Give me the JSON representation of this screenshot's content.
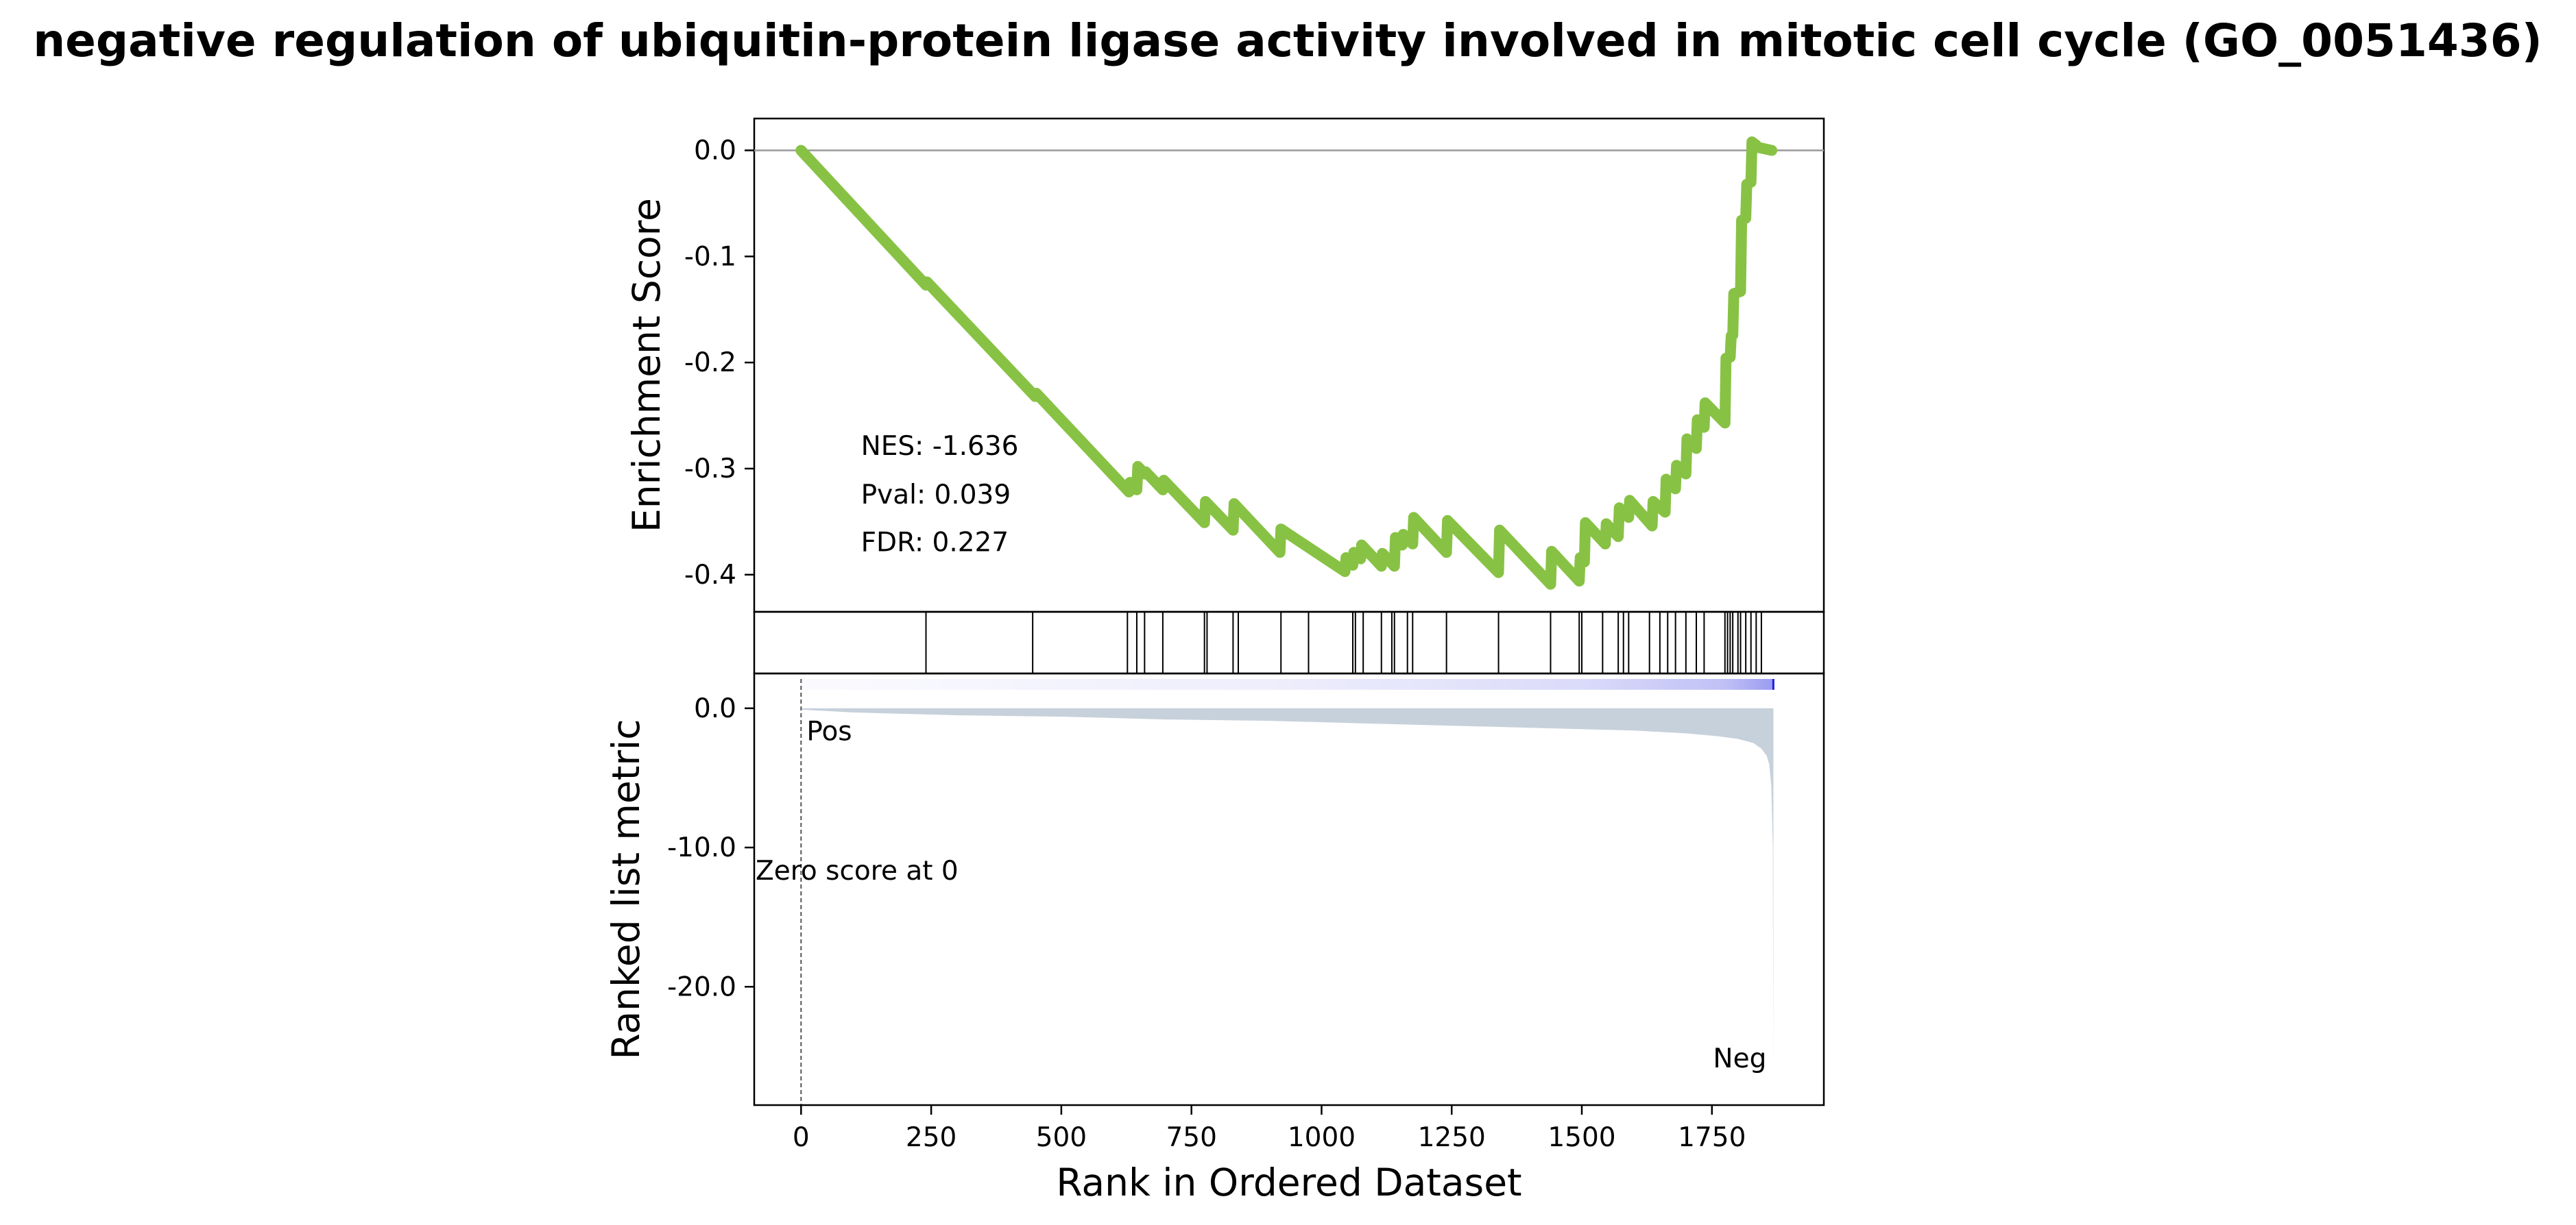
{
  "chart_data": {
    "type": "line",
    "title": "negative regulation of ubiquitin-protein ligase activity involved in mitotic cell cycle (GO_0051436)",
    "xlabel": "Rank in Ordered Dataset",
    "xlim": [
      -90,
      1965
    ],
    "xticks": [
      0,
      250,
      500,
      750,
      1000,
      1250,
      1500,
      1750
    ],
    "es_panel": {
      "ylabel": "Enrichment Score",
      "ylim": [
        -0.435,
        0.03
      ],
      "yticks": [
        {
          "value": 0.0,
          "label": "0.0"
        },
        {
          "value": -0.1,
          "label": "-0.1"
        },
        {
          "value": -0.2,
          "label": "-0.2"
        },
        {
          "value": -0.3,
          "label": "-0.3"
        },
        {
          "value": -0.4,
          "label": "-0.4"
        }
      ],
      "line_color": "#88c244",
      "zero_line_color": "#999999",
      "x": [
        0,
        240,
        242,
        450,
        452,
        630,
        632,
        645,
        647,
        660,
        662,
        695,
        697,
        775,
        777,
        830,
        832,
        920,
        922,
        1045,
        1047,
        1060,
        1062,
        1075,
        1077,
        1115,
        1117,
        1140,
        1142,
        1155,
        1157,
        1175,
        1177,
        1240,
        1242,
        1340,
        1342,
        1440,
        1442,
        1495,
        1497,
        1505,
        1507,
        1545,
        1547,
        1570,
        1572,
        1590,
        1592,
        1635,
        1637,
        1660,
        1662,
        1680,
        1682,
        1700,
        1702,
        1720,
        1722,
        1735,
        1737,
        1775,
        1777,
        1785,
        1787,
        1790,
        1792,
        1805,
        1807,
        1815,
        1817,
        1825,
        1827,
        1835,
        1837,
        1865
      ],
      "y": [
        0.0,
        -0.127,
        -0.124,
        -0.232,
        -0.229,
        -0.322,
        -0.313,
        -0.32,
        -0.298,
        -0.305,
        -0.303,
        -0.32,
        -0.311,
        -0.351,
        -0.331,
        -0.358,
        -0.333,
        -0.379,
        -0.357,
        -0.397,
        -0.384,
        -0.391,
        -0.379,
        -0.385,
        -0.372,
        -0.392,
        -0.38,
        -0.392,
        -0.365,
        -0.372,
        -0.362,
        -0.371,
        -0.346,
        -0.379,
        -0.349,
        -0.398,
        -0.358,
        -0.409,
        -0.378,
        -0.406,
        -0.384,
        -0.388,
        -0.351,
        -0.371,
        -0.352,
        -0.364,
        -0.337,
        -0.346,
        -0.33,
        -0.354,
        -0.331,
        -0.341,
        -0.31,
        -0.319,
        -0.297,
        -0.305,
        -0.272,
        -0.281,
        -0.254,
        -0.261,
        -0.238,
        -0.257,
        -0.196,
        -0.195,
        -0.175,
        -0.174,
        -0.135,
        -0.133,
        -0.066,
        -0.064,
        -0.032,
        -0.03,
        0.008,
        0.005,
        0.003,
        0.0
      ],
      "annotations": [
        {
          "text": "NES: -1.636",
          "x": 115,
          "y": -0.287
        },
        {
          "text": "Pval: 0.039",
          "x": 115,
          "y": -0.333
        },
        {
          "text": "FDR: 0.227",
          "x": 115,
          "y": -0.378
        }
      ]
    },
    "hits_panel": {
      "hit_positions": [
        240,
        445,
        627,
        645,
        660,
        695,
        775,
        780,
        830,
        840,
        922,
        975,
        1060,
        1065,
        1080,
        1115,
        1135,
        1140,
        1165,
        1175,
        1240,
        1340,
        1440,
        1495,
        1500,
        1540,
        1570,
        1580,
        1590,
        1630,
        1650,
        1665,
        1680,
        1700,
        1720,
        1735,
        1775,
        1780,
        1785,
        1790,
        1800,
        1805,
        1815,
        1825,
        1835,
        1845
      ]
    },
    "rank_panel": {
      "ylabel": "Ranked list metric",
      "ylim": [
        -28.5,
        2.5
      ],
      "yticks": [
        {
          "value": 0.0,
          "label": "0.0"
        },
        {
          "value": -10.0,
          "label": "-10.0"
        },
        {
          "value": -20.0,
          "label": "-20.0"
        }
      ],
      "fill_color": "#c7d1db",
      "gradient_color": "#1f1fe0",
      "max_rank": 1868,
      "metric_x": [
        0,
        100,
        300,
        500,
        700,
        900,
        1100,
        1300,
        1500,
        1600,
        1700,
        1760,
        1800,
        1830,
        1845,
        1855,
        1860,
        1864,
        1867,
        1868
      ],
      "metric_y": [
        -0.1,
        -0.3,
        -0.5,
        -0.6,
        -0.8,
        -0.9,
        -1.1,
        -1.3,
        -1.5,
        -1.6,
        -1.8,
        -2.0,
        -2.2,
        -2.5,
        -2.9,
        -3.4,
        -4.0,
        -5.5,
        -10.0,
        -26.5
      ],
      "zero_cross_rank": 0,
      "zero_cross_text": "Zero score at 0",
      "pos_label": "Pos",
      "pos_color": "#ff0000",
      "neg_label": "Neg",
      "neg_color": "#0000ff"
    }
  }
}
